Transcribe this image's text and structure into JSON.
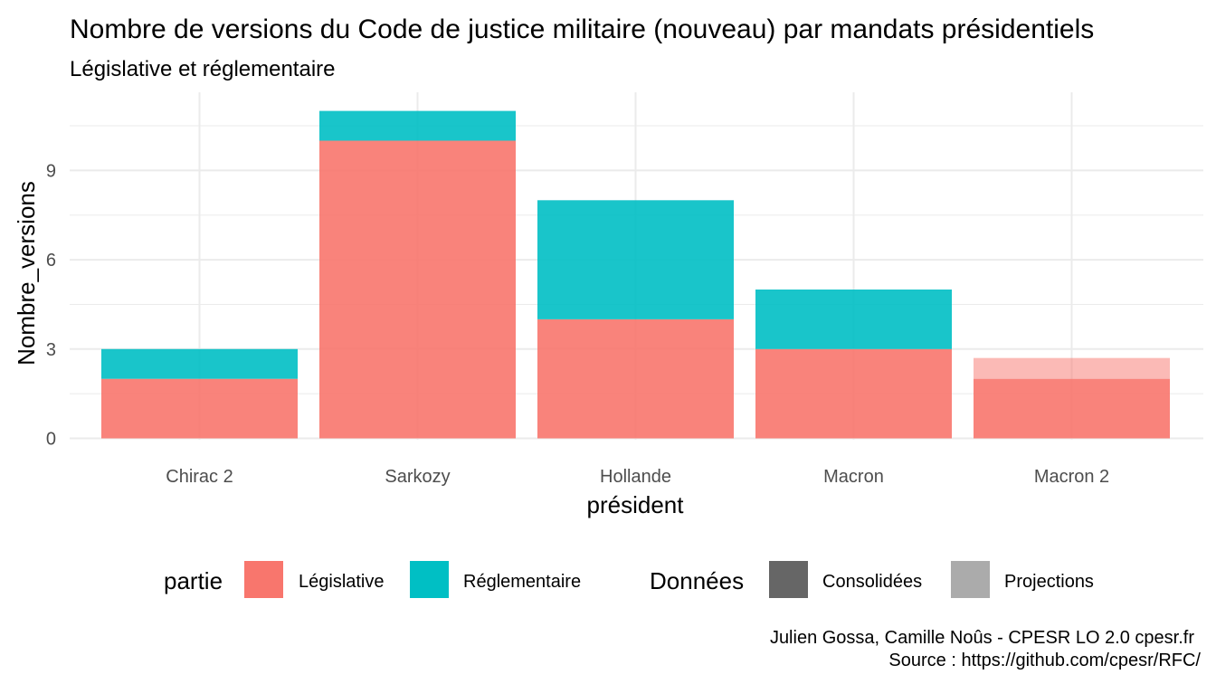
{
  "colors": {
    "legislative": "#F8766D",
    "reglementaire": "#00BFC4",
    "consolidees": "#666666",
    "projections": "#ababab",
    "grid": "#ebebeb"
  },
  "chart_data": {
    "type": "bar",
    "stacked": true,
    "title": "Nombre de versions du Code de justice militaire (nouveau) par mandats présidentiels",
    "subtitle": "Législative et réglementaire",
    "xlabel": "président",
    "ylabel": "Nombre_versions",
    "categories": [
      "Chirac 2",
      "Sarkozy",
      "Hollande",
      "Macron",
      "Macron 2"
    ],
    "ylim": [
      0,
      11.5
    ],
    "yticks": [
      0,
      3,
      6,
      9
    ],
    "grid": true,
    "series": [
      {
        "name": "Législative",
        "data_type": "Consolidées",
        "values": [
          2,
          10,
          4,
          3,
          2
        ]
      },
      {
        "name": "Réglementaire",
        "data_type": "Consolidées",
        "values": [
          1,
          1,
          4,
          2,
          0
        ]
      },
      {
        "name": "Législative",
        "data_type": "Projections",
        "values": [
          0,
          0,
          0,
          0,
          0.7
        ]
      }
    ],
    "legend": {
      "position": "bottom",
      "partie_title": "partie",
      "partie_items": [
        "Législative",
        "Réglementaire"
      ],
      "donnees_title": "Données",
      "donnees_items": [
        "Consolidées",
        "Projections"
      ]
    },
    "caption_line1": "Julien Gossa, Camille Noûs - CPESR LO 2.0 cpesr.fr",
    "caption_line2": "Source : https://github.com/cpesr/RFC/"
  }
}
